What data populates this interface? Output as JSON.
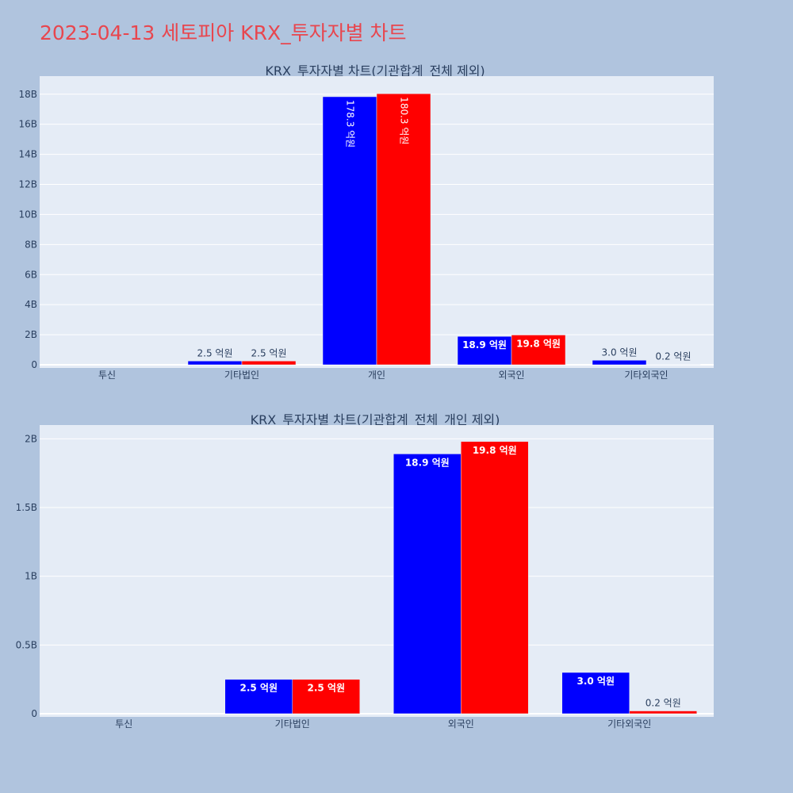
{
  "page": {
    "title": "2023-04-13 세토피아 KRX_투자자별 차트"
  },
  "colors": {
    "background": "#b0c4de",
    "plot_bg": "#e5ecf6",
    "series1": "#0000ff",
    "series2": "#ff0000",
    "title": "#e8464e",
    "axis_text": "#2a3f5f"
  },
  "chart_data": [
    {
      "type": "bar",
      "title": "KRX_투자자별 차트(기관합계_전체 제외)",
      "categories": [
        "투신",
        "기타법인",
        "개인",
        "외국인",
        "기타외국인"
      ],
      "series": [
        {
          "color": "#0000ff",
          "values": [
            0,
            250000000,
            17830000000,
            1890000000,
            300000000
          ],
          "labels": [
            "",
            "2.5 억원",
            "178.3 억원",
            "18.9 억원",
            "3.0 억원"
          ]
        },
        {
          "color": "#ff0000",
          "values": [
            0,
            250000000,
            18030000000,
            1980000000,
            20000000
          ],
          "labels": [
            "",
            "2.5 억원",
            "180.3 억원",
            "19.8 억원",
            "0.2 억원"
          ]
        }
      ],
      "ylim": [
        0,
        19200000000
      ],
      "yticks": [
        0,
        2000000000,
        4000000000,
        6000000000,
        8000000000,
        10000000000,
        12000000000,
        14000000000,
        16000000000,
        18000000000
      ],
      "ytick_labels": [
        "0",
        "2B",
        "4B",
        "6B",
        "8B",
        "10B",
        "12B",
        "14B",
        "16B",
        "18B"
      ],
      "grid": true
    },
    {
      "type": "bar",
      "title": "KRX_투자자별 차트(기관합계_전체_개인 제외)",
      "categories": [
        "투신",
        "기타법인",
        "외국인",
        "기타외국인"
      ],
      "series": [
        {
          "color": "#0000ff",
          "values": [
            0,
            250000000,
            1890000000,
            300000000
          ],
          "labels": [
            "",
            "2.5 억원",
            "18.9 억원",
            "3.0 억원"
          ]
        },
        {
          "color": "#ff0000",
          "values": [
            0,
            250000000,
            1980000000,
            20000000
          ],
          "labels": [
            "",
            "2.5 억원",
            "19.8 억원",
            "0.2 억원"
          ]
        }
      ],
      "ylim": [
        0,
        2100000000
      ],
      "yticks": [
        0,
        500000000,
        1000000000,
        1500000000,
        2000000000
      ],
      "ytick_labels": [
        "0",
        "0.5B",
        "1B",
        "1.5B",
        "2B"
      ],
      "grid": true
    }
  ]
}
